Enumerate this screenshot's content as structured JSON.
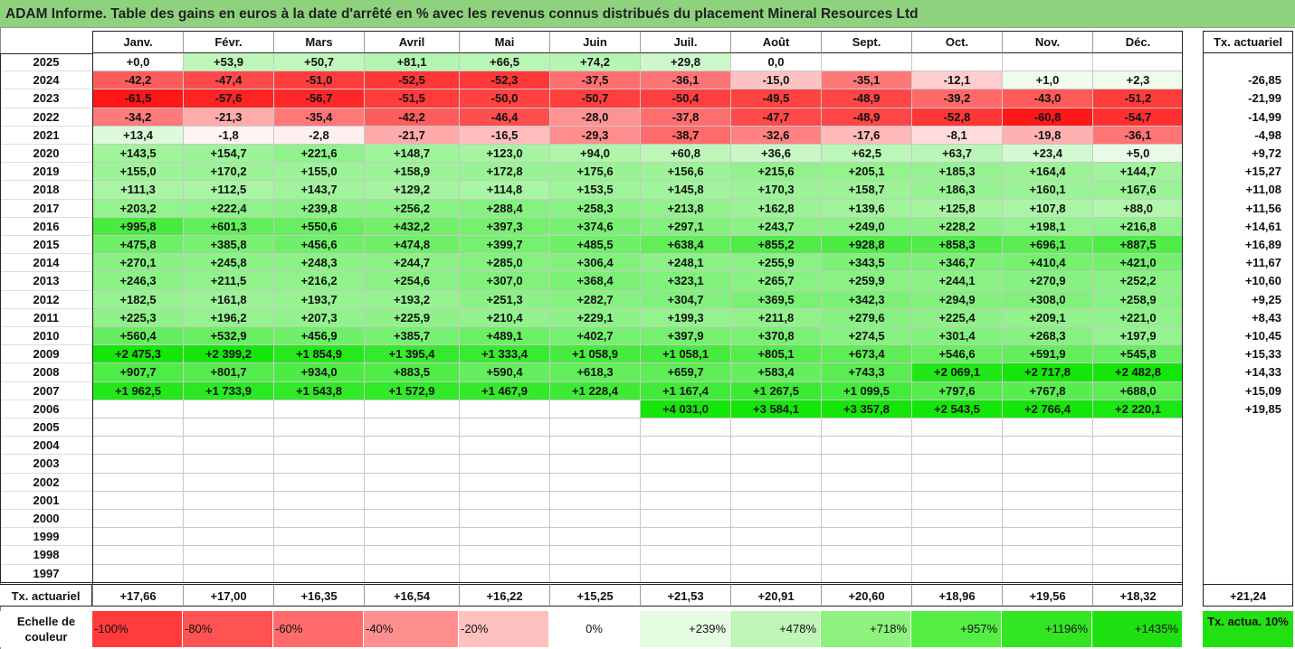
{
  "title": "ADAM Informe. Table des gains en euros à la date d'arrêté en % avec les revenus connus distribués du placement Mineral Resources Ltd",
  "months": [
    "Janv.",
    "Févr.",
    "Mars",
    "Avril",
    "Mai",
    "Juin",
    "Juil.",
    "Août",
    "Sept.",
    "Oct.",
    "Nov.",
    "Déc."
  ],
  "rate_header": "Tx. actuariel",
  "rows": [
    {
      "year": "2025",
      "values": [
        "+0,0",
        "+53,9",
        "+50,7",
        "+81,1",
        "+66,5",
        "+74,2",
        "+29,8",
        "0,0",
        "",
        "",
        "",
        ""
      ],
      "rate": ""
    },
    {
      "year": "2024",
      "values": [
        "-42,2",
        "-47,4",
        "-51,0",
        "-52,5",
        "-52,3",
        "-37,5",
        "-36,1",
        "-15,0",
        "-35,1",
        "-12,1",
        "+1,0",
        "+2,3"
      ],
      "rate": "-26,85"
    },
    {
      "year": "2023",
      "values": [
        "-61,5",
        "-57,6",
        "-56,7",
        "-51,5",
        "-50,0",
        "-50,7",
        "-50,4",
        "-49,5",
        "-48,9",
        "-39,2",
        "-43,0",
        "-51,2"
      ],
      "rate": "-21,99"
    },
    {
      "year": "2022",
      "values": [
        "-34,2",
        "-21,3",
        "-35,4",
        "-42,2",
        "-46,4",
        "-28,0",
        "-37,8",
        "-47,7",
        "-48,9",
        "-52,8",
        "-60,8",
        "-54,7"
      ],
      "rate": "-14,99"
    },
    {
      "year": "2021",
      "values": [
        "+13,4",
        "-1,8",
        "-2,8",
        "-21,7",
        "-16,5",
        "-29,3",
        "-38,7",
        "-32,6",
        "-17,6",
        "-8,1",
        "-19,8",
        "-36,1"
      ],
      "rate": "-4,98"
    },
    {
      "year": "2020",
      "values": [
        "+143,5",
        "+154,7",
        "+221,6",
        "+148,7",
        "+123,0",
        "+94,0",
        "+60,8",
        "+36,6",
        "+62,5",
        "+63,7",
        "+23,4",
        "+5,0"
      ],
      "rate": "+9,72"
    },
    {
      "year": "2019",
      "values": [
        "+155,0",
        "+170,2",
        "+155,0",
        "+158,9",
        "+172,8",
        "+175,6",
        "+156,6",
        "+215,6",
        "+205,1",
        "+185,3",
        "+164,4",
        "+144,7"
      ],
      "rate": "+15,27"
    },
    {
      "year": "2018",
      "values": [
        "+111,3",
        "+112,5",
        "+143,7",
        "+129,2",
        "+114,8",
        "+153,5",
        "+145,8",
        "+170,3",
        "+158,7",
        "+186,3",
        "+160,1",
        "+167,6"
      ],
      "rate": "+11,08"
    },
    {
      "year": "2017",
      "values": [
        "+203,2",
        "+222,4",
        "+239,8",
        "+256,2",
        "+288,4",
        "+258,3",
        "+213,8",
        "+162,8",
        "+139,6",
        "+125,8",
        "+107,8",
        "+88,0"
      ],
      "rate": "+11,56"
    },
    {
      "year": "2016",
      "values": [
        "+995,8",
        "+601,3",
        "+550,6",
        "+432,2",
        "+397,3",
        "+374,6",
        "+297,1",
        "+243,7",
        "+249,0",
        "+228,2",
        "+198,1",
        "+216,8"
      ],
      "rate": "+14,61"
    },
    {
      "year": "2015",
      "values": [
        "+475,8",
        "+385,8",
        "+456,6",
        "+474,8",
        "+399,7",
        "+485,5",
        "+638,4",
        "+855,2",
        "+928,8",
        "+858,3",
        "+696,1",
        "+887,5"
      ],
      "rate": "+16,89"
    },
    {
      "year": "2014",
      "values": [
        "+270,1",
        "+245,8",
        "+248,3",
        "+244,7",
        "+285,0",
        "+306,4",
        "+248,1",
        "+255,9",
        "+343,5",
        "+346,7",
        "+410,4",
        "+421,0"
      ],
      "rate": "+11,67"
    },
    {
      "year": "2013",
      "values": [
        "+246,3",
        "+211,5",
        "+216,2",
        "+254,6",
        "+307,0",
        "+368,4",
        "+323,1",
        "+265,7",
        "+259,9",
        "+244,1",
        "+270,9",
        "+252,2"
      ],
      "rate": "+10,60"
    },
    {
      "year": "2012",
      "values": [
        "+182,5",
        "+161,8",
        "+193,7",
        "+193,2",
        "+251,3",
        "+282,7",
        "+304,7",
        "+369,5",
        "+342,3",
        "+294,9",
        "+308,0",
        "+258,9"
      ],
      "rate": "+9,25"
    },
    {
      "year": "2011",
      "values": [
        "+225,3",
        "+196,2",
        "+207,3",
        "+225,9",
        "+210,4",
        "+229,1",
        "+199,3",
        "+211,8",
        "+279,6",
        "+225,4",
        "+209,1",
        "+221,0"
      ],
      "rate": "+8,43"
    },
    {
      "year": "2010",
      "values": [
        "+560,4",
        "+532,9",
        "+456,9",
        "+385,7",
        "+489,1",
        "+402,7",
        "+397,9",
        "+370,8",
        "+274,5",
        "+301,4",
        "+268,3",
        "+197,9"
      ],
      "rate": "+10,45"
    },
    {
      "year": "2009",
      "values": [
        "+2 475,3",
        "+2 399,2",
        "+1 854,9",
        "+1 395,4",
        "+1 333,4",
        "+1 058,9",
        "+1 058,1",
        "+805,1",
        "+673,4",
        "+546,6",
        "+591,9",
        "+545,8"
      ],
      "rate": "+15,33"
    },
    {
      "year": "2008",
      "values": [
        "+907,7",
        "+801,7",
        "+934,0",
        "+883,5",
        "+590,4",
        "+618,3",
        "+659,7",
        "+583,4",
        "+743,3",
        "+2 069,1",
        "+2 717,8",
        "+2 482,8"
      ],
      "rate": "+14,33"
    },
    {
      "year": "2007",
      "values": [
        "+1 962,5",
        "+1 733,9",
        "+1 543,8",
        "+1 572,9",
        "+1 467,9",
        "+1 228,4",
        "+1 167,4",
        "+1 267,5",
        "+1 099,5",
        "+797,6",
        "+767,8",
        "+688,0"
      ],
      "rate": "+15,09"
    },
    {
      "year": "2006",
      "values": [
        "",
        "",
        "",
        "",
        "",
        "",
        "+4 031,0",
        "+3 584,1",
        "+3 357,8",
        "+2 543,5",
        "+2 766,4",
        "+2 220,1"
      ],
      "rate": "+19,85"
    },
    {
      "year": "2005",
      "values": [
        "",
        "",
        "",
        "",
        "",
        "",
        "",
        "",
        "",
        "",
        "",
        ""
      ],
      "rate": ""
    },
    {
      "year": "2004",
      "values": [
        "",
        "",
        "",
        "",
        "",
        "",
        "",
        "",
        "",
        "",
        "",
        ""
      ],
      "rate": ""
    },
    {
      "year": "2003",
      "values": [
        "",
        "",
        "",
        "",
        "",
        "",
        "",
        "",
        "",
        "",
        "",
        ""
      ],
      "rate": ""
    },
    {
      "year": "2002",
      "values": [
        "",
        "",
        "",
        "",
        "",
        "",
        "",
        "",
        "",
        "",
        "",
        ""
      ],
      "rate": ""
    },
    {
      "year": "2001",
      "values": [
        "",
        "",
        "",
        "",
        "",
        "",
        "",
        "",
        "",
        "",
        "",
        ""
      ],
      "rate": ""
    },
    {
      "year": "2000",
      "values": [
        "",
        "",
        "",
        "",
        "",
        "",
        "",
        "",
        "",
        "",
        "",
        ""
      ],
      "rate": ""
    },
    {
      "year": "1999",
      "values": [
        "",
        "",
        "",
        "",
        "",
        "",
        "",
        "",
        "",
        "",
        "",
        ""
      ],
      "rate": ""
    },
    {
      "year": "1998",
      "values": [
        "",
        "",
        "",
        "",
        "",
        "",
        "",
        "",
        "",
        "",
        "",
        ""
      ],
      "rate": ""
    },
    {
      "year": "1997",
      "values": [
        "",
        "",
        "",
        "",
        "",
        "",
        "",
        "",
        "",
        "",
        "",
        ""
      ],
      "rate": ""
    }
  ],
  "total_row": {
    "label": "Tx. actuariel",
    "values": [
      "+17,66",
      "+17,00",
      "+16,35",
      "+16,54",
      "+16,22",
      "+15,25",
      "+21,53",
      "+20,91",
      "+20,60",
      "+18,96",
      "+19,56",
      "+18,32"
    ],
    "rate": "+21,24"
  },
  "legend": {
    "label": "Echelle de couleur",
    "items": [
      {
        "text": "-100%",
        "color": "#ff3b3b",
        "align": "left"
      },
      {
        "text": "-80%",
        "color": "#ff5252",
        "align": "left"
      },
      {
        "text": "-60%",
        "color": "#ff6b6b",
        "align": "left"
      },
      {
        "text": "-40%",
        "color": "#ff8f8f",
        "align": "left"
      },
      {
        "text": "-20%",
        "color": "#ffc0c0",
        "align": "left"
      },
      {
        "text": "0%",
        "color": "#ffffff",
        "align": "center"
      },
      {
        "text": "+239%",
        "color": "#e5fbe2",
        "align": "right"
      },
      {
        "text": "+478%",
        "color": "#bff5b6",
        "align": "right"
      },
      {
        "text": "+718%",
        "color": "#8ef37e",
        "align": "right"
      },
      {
        "text": "+957%",
        "color": "#55ee44",
        "align": "right"
      },
      {
        "text": "+1196%",
        "color": "#33e622",
        "align": "right"
      },
      {
        "text": "+1435%",
        "color": "#1fe011",
        "align": "right"
      }
    ],
    "ref_text": "Tx. actua. 10%",
    "ref_color": "#22e011"
  }
}
